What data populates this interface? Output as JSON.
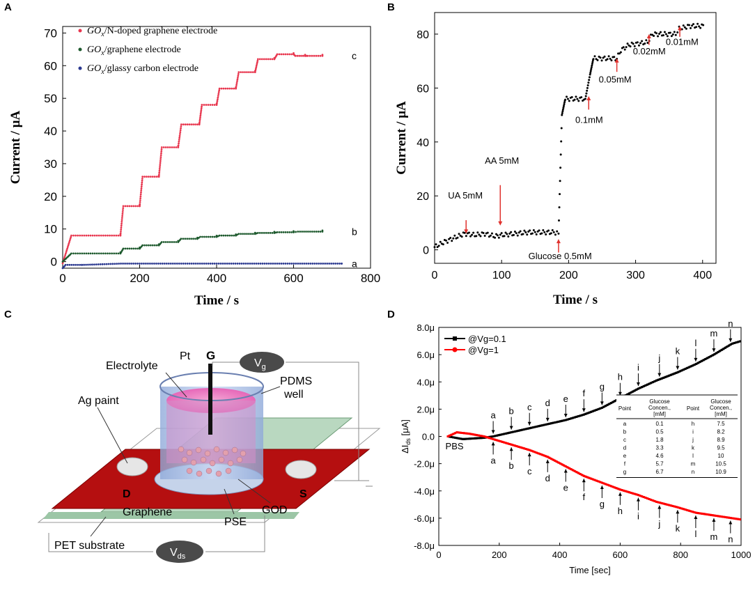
{
  "panel_labels": {
    "a": "A",
    "b": "B",
    "c": "C",
    "d": "D"
  },
  "chart_data": [
    {
      "panel": "A",
      "type": "line",
      "title": "",
      "xlabel": "Time / s",
      "ylabel": "Current / μA",
      "xlim": [
        0,
        800
      ],
      "ylim": [
        -2,
        72
      ],
      "xticks": [
        0,
        200,
        400,
        600,
        800
      ],
      "yticks": [
        0,
        10,
        20,
        30,
        40,
        50,
        60,
        70
      ],
      "series": [
        {
          "name": "GOx/N-doped graphene electrode",
          "legend_sub": "x",
          "legend_prefix": "GO",
          "legend_suffix": "/N-doped graphene electrode",
          "end_label": "c",
          "color": "#e8374f",
          "steps": [
            [
              0,
              -0.5
            ],
            [
              150,
              8
            ],
            [
              200,
              17
            ],
            [
              250,
              26
            ],
            [
              300,
              35
            ],
            [
              355,
              42
            ],
            [
              400,
              48
            ],
            [
              450,
              53
            ],
            [
              500,
              58
            ],
            [
              550,
              62
            ],
            [
              600,
              63.5
            ],
            [
              630,
              63
            ],
            [
              675,
              63
            ]
          ]
        },
        {
          "name": "GOx/graphene electrode",
          "legend_sub": "x",
          "legend_prefix": "GO",
          "legend_suffix": "/graphene electrode",
          "end_label": "b",
          "color": "#1e5a2e",
          "steps": [
            [
              0,
              0
            ],
            [
              150,
              2.5
            ],
            [
              200,
              4
            ],
            [
              250,
              5
            ],
            [
              300,
              6
            ],
            [
              350,
              7
            ],
            [
              400,
              7.6
            ],
            [
              450,
              8
            ],
            [
              500,
              8.5
            ],
            [
              550,
              8.8
            ],
            [
              600,
              9
            ],
            [
              675,
              9.2
            ]
          ]
        },
        {
          "name": "GOx/glassy carbon electrode",
          "legend_sub": "x",
          "legend_prefix": "GO",
          "legend_suffix": "/glassy carbon electrode",
          "end_label": "a",
          "color": "#2b3990",
          "steps": [
            [
              0,
              -2
            ],
            [
              50,
              -1
            ],
            [
              725,
              -0.6
            ]
          ]
        }
      ]
    },
    {
      "panel": "B",
      "type": "line",
      "xlabel": "Time / s",
      "ylabel": "Current / μA",
      "xlim": [
        0,
        420
      ],
      "ylim": [
        -5,
        88
      ],
      "xticks": [
        0,
        100,
        200,
        300,
        400
      ],
      "yticks": [
        0,
        20,
        40,
        60,
        80
      ],
      "points": [
        [
          0,
          1
        ],
        [
          15,
          3
        ],
        [
          30,
          4.5
        ],
        [
          45,
          6
        ],
        [
          60,
          5.5
        ],
        [
          75,
          6
        ],
        [
          90,
          5
        ],
        [
          100,
          5.5
        ],
        [
          120,
          6
        ],
        [
          140,
          6.5
        ],
        [
          160,
          6.5
        ],
        [
          178,
          6.5
        ],
        [
          185,
          6
        ],
        [
          190,
          50
        ],
        [
          195,
          56
        ],
        [
          205,
          56
        ],
        [
          225,
          56
        ],
        [
          232,
          65
        ],
        [
          237,
          71
        ],
        [
          260,
          71
        ],
        [
          272,
          71
        ],
        [
          278,
          74
        ],
        [
          290,
          76
        ],
        [
          318,
          77
        ],
        [
          325,
          80
        ],
        [
          360,
          80
        ],
        [
          365,
          82
        ],
        [
          380,
          83
        ],
        [
          403,
          83
        ]
      ],
      "annotations": [
        {
          "text": "UA 5mM",
          "x": 47,
          "y": 13
        },
        {
          "text": "AA 5mM",
          "x": 98,
          "y": 28
        },
        {
          "text": "Glucose 0.5mM",
          "x": 185,
          "y": -4
        },
        {
          "text": "0.1mM",
          "x": 230,
          "y": 47
        },
        {
          "text": "0.05mM",
          "x": 272,
          "y": 62
        },
        {
          "text": "0.02mM",
          "x": 320,
          "y": 73
        },
        {
          "text": "0.01mM",
          "x": 366,
          "y": 78
        }
      ]
    },
    {
      "panel": "D",
      "type": "line",
      "xlabel": "Time [sec]",
      "ylabel": "ΔI",
      "ylabel_sub": "ds",
      "ylabel_unit": " [μA]",
      "xlim": [
        0,
        1000
      ],
      "ylim": [
        -8,
        8
      ],
      "xticks": [
        0,
        200,
        400,
        600,
        800,
        1000
      ],
      "yticks": [
        "-8.0μ",
        "-6.0μ",
        "-4.0μ",
        "-2.0μ",
        "0.0",
        "2.0μ",
        "4.0μ",
        "6.0μ",
        "8.0μ"
      ],
      "ytick_values": [
        -8,
        -6,
        -4,
        -2,
        0,
        2,
        4,
        6,
        8
      ],
      "pbs_label": "PBS",
      "series": [
        {
          "name": "@Vg=0.1",
          "color": "#000000",
          "points": [
            [
              30,
              0
            ],
            [
              80,
              -0.2
            ],
            [
              150,
              -0.1
            ],
            [
              180,
              0
            ],
            [
              240,
              0.3
            ],
            [
              300,
              0.6
            ],
            [
              360,
              0.9
            ],
            [
              420,
              1.2
            ],
            [
              480,
              1.6
            ],
            [
              540,
              2.1
            ],
            [
              600,
              2.8
            ],
            [
              660,
              3.5
            ],
            [
              720,
              4.1
            ],
            [
              790,
              4.7
            ],
            [
              850,
              5.3
            ],
            [
              910,
              6
            ],
            [
              970,
              6.8
            ],
            [
              1000,
              7
            ]
          ],
          "markers": [
            "a",
            "b",
            "c",
            "d",
            "e",
            "f",
            "g",
            "h",
            "i",
            "j",
            "k",
            "l",
            "m",
            "n"
          ],
          "marker_x": [
            180,
            240,
            300,
            360,
            420,
            480,
            540,
            600,
            660,
            730,
            790,
            850,
            910,
            965
          ]
        },
        {
          "name": "@Vg=1",
          "color": "#ff0000",
          "points": [
            [
              30,
              0
            ],
            [
              60,
              0.3
            ],
            [
              100,
              0.2
            ],
            [
              150,
              0
            ],
            [
              180,
              -0.2
            ],
            [
              240,
              -0.6
            ],
            [
              300,
              -1.0
            ],
            [
              360,
              -1.5
            ],
            [
              420,
              -2.2
            ],
            [
              480,
              -2.9
            ],
            [
              540,
              -3.4
            ],
            [
              600,
              -3.9
            ],
            [
              660,
              -4.3
            ],
            [
              720,
              -4.8
            ],
            [
              790,
              -5.2
            ],
            [
              850,
              -5.6
            ],
            [
              910,
              -5.8
            ],
            [
              970,
              -6.0
            ],
            [
              1000,
              -6.1
            ]
          ],
          "markers": [
            "a",
            "b",
            "c",
            "d",
            "e",
            "f",
            "g",
            "h",
            "i",
            "j",
            "k",
            "l",
            "m",
            "n"
          ],
          "marker_x": [
            180,
            240,
            300,
            360,
            420,
            480,
            540,
            600,
            660,
            730,
            790,
            850,
            910,
            965
          ]
        }
      ],
      "table": {
        "headers": [
          "Point",
          "Glucose Concen. [mM]",
          "Point",
          "Glucose Concen. [mM]"
        ],
        "rows": [
          [
            "a",
            "0.1",
            "h",
            "7.5"
          ],
          [
            "b",
            "0.5",
            "i",
            "8.2"
          ],
          [
            "c",
            "1.8",
            "j",
            "8.9"
          ],
          [
            "d",
            "3.3",
            "k",
            "9.5"
          ],
          [
            "e",
            "4.6",
            "l",
            "10"
          ],
          [
            "f",
            "5.7",
            "m",
            "10.5"
          ],
          [
            "g",
            "6.7",
            "n",
            "10.9"
          ]
        ]
      }
    }
  ],
  "diagram": {
    "labels": {
      "pt": "Pt",
      "g": "G",
      "vg_main": "V",
      "vg_sub": "g",
      "electrolyte": "Electrolyte",
      "pdms": "PDMS",
      "well": "well",
      "ag_paint": "Ag paint",
      "d": "D",
      "s": "S",
      "graphene": "Graphene",
      "pse": "PSE",
      "god": "GOD",
      "pet": "PET substrate",
      "vds_main": "V",
      "vds_sub": "ds"
    }
  }
}
